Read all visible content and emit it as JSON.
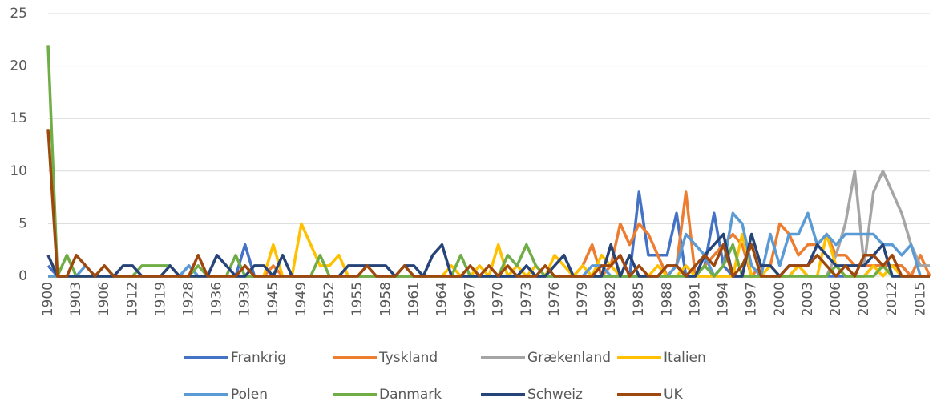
{
  "chart_data": {
    "type": "line",
    "categories": [
      1900,
      null,
      null,
      1903,
      null,
      null,
      1906,
      null,
      null,
      1912,
      null,
      null,
      1919,
      null,
      null,
      1928,
      null,
      null,
      1936,
      null,
      null,
      1939,
      null,
      null,
      1945,
      null,
      null,
      1949,
      null,
      null,
      1952,
      null,
      null,
      1955,
      null,
      null,
      1958,
      null,
      null,
      1961,
      null,
      null,
      1964,
      null,
      null,
      1967,
      null,
      null,
      1970,
      null,
      null,
      1973,
      null,
      null,
      1976,
      null,
      null,
      1979,
      null,
      null,
      1982,
      null,
      null,
      1985,
      null,
      null,
      1988,
      null,
      null,
      1991,
      null,
      null,
      1994,
      null,
      null,
      1997,
      null,
      null,
      2000,
      null,
      null,
      2003,
      null,
      null,
      2006,
      null,
      null,
      2009,
      null,
      null,
      2012,
      null,
      null,
      2015,
      null
    ],
    "series": [
      {
        "name": "Frankrig",
        "color": "#4472c4",
        "values": [
          1,
          0,
          0,
          0,
          0,
          0,
          0,
          0,
          0,
          0,
          0,
          0,
          0,
          0,
          0,
          1,
          0,
          0,
          0,
          0,
          0,
          3,
          0,
          0,
          0,
          0,
          0,
          0,
          0,
          0,
          0,
          0,
          0,
          0,
          0,
          0,
          0,
          0,
          0,
          0,
          0,
          0,
          0,
          0,
          0,
          0,
          0,
          0,
          0,
          0,
          0,
          0,
          0,
          0,
          0,
          0,
          0,
          0,
          0,
          0,
          0,
          0,
          0,
          8,
          2,
          2,
          2,
          6,
          0,
          0,
          1,
          6,
          1,
          0,
          0,
          0,
          0,
          0,
          0,
          0,
          1,
          0,
          0,
          0,
          0,
          0,
          0,
          0,
          1,
          1,
          1,
          1,
          0,
          0,
          0
        ]
      },
      {
        "name": "Tyskland",
        "color": "#ed7d31",
        "values": [
          0,
          0,
          0,
          0,
          0,
          0,
          0,
          0,
          0,
          0,
          0,
          0,
          0,
          0,
          0,
          0,
          0,
          0,
          0,
          0,
          0,
          0,
          0,
          0,
          1,
          0,
          0,
          0,
          0,
          0,
          0,
          0,
          0,
          0,
          0,
          0,
          0,
          0,
          0,
          0,
          0,
          0,
          0,
          0,
          0,
          0,
          0,
          0,
          0,
          0,
          0,
          0,
          0,
          0,
          0,
          0,
          0,
          1,
          3,
          0,
          1,
          5,
          3,
          5,
          4,
          2,
          0,
          1,
          8,
          0,
          1,
          2,
          3,
          4,
          3,
          0,
          1,
          1,
          5,
          4,
          2,
          3,
          3,
          4,
          2,
          2,
          1,
          1,
          1,
          1,
          1,
          1,
          0,
          2,
          0
        ]
      },
      {
        "name": "Grækenland",
        "color": "#a5a5a5",
        "values": [
          0,
          0,
          0,
          0,
          0,
          0,
          0,
          0,
          0,
          0,
          0,
          0,
          0,
          0,
          0,
          0,
          0,
          0,
          0,
          0,
          0,
          0,
          0,
          0,
          0,
          0,
          0,
          0,
          0,
          0,
          0,
          0,
          0,
          0,
          0,
          0,
          0,
          0,
          0,
          0,
          0,
          0,
          0,
          0,
          0,
          0,
          0,
          0,
          0,
          0,
          0,
          0,
          0,
          0,
          0,
          0,
          0,
          0,
          0,
          0,
          0,
          0,
          0,
          0,
          0,
          0,
          0,
          0,
          0,
          0,
          0,
          0,
          0,
          0,
          0,
          0,
          0,
          0,
          0,
          0,
          0,
          0,
          0,
          0,
          2,
          5,
          10,
          1,
          8,
          10,
          8,
          6,
          3,
          1,
          1
        ]
      },
      {
        "name": "Italien",
        "color": "#ffc000",
        "values": [
          0,
          0,
          0,
          0,
          0,
          0,
          0,
          0,
          0,
          0,
          0,
          0,
          0,
          0,
          0,
          0,
          0,
          0,
          0,
          0,
          0,
          0,
          0,
          0,
          3,
          0,
          0,
          5,
          3,
          1,
          1,
          2,
          0,
          0,
          0,
          0,
          0,
          0,
          0,
          0,
          0,
          0,
          0,
          1,
          0,
          0,
          1,
          0,
          3,
          0,
          1,
          0,
          1,
          0,
          2,
          1,
          0,
          1,
          0,
          2,
          1,
          0,
          0,
          0,
          0,
          1,
          0,
          0,
          1,
          0,
          0,
          0,
          0,
          0,
          4,
          0,
          0,
          1,
          0,
          0,
          1,
          0,
          0,
          4,
          1,
          0,
          0,
          0,
          1,
          0,
          1,
          0,
          0,
          0,
          0
        ]
      },
      {
        "name": "Polen",
        "color": "#5b9bd5",
        "values": [
          0,
          0,
          0,
          0,
          1,
          0,
          0,
          0,
          0,
          0,
          0,
          0,
          0,
          0,
          0,
          1,
          0,
          0,
          0,
          0,
          0,
          0,
          0,
          0,
          0,
          0,
          0,
          0,
          0,
          0,
          0,
          0,
          0,
          0,
          0,
          0,
          0,
          0,
          0,
          0,
          0,
          0,
          0,
          0,
          0,
          0,
          0,
          0,
          0,
          0,
          0,
          0,
          0,
          0,
          0,
          0,
          0,
          0,
          1,
          1,
          0,
          0,
          0,
          0,
          0,
          0,
          0,
          1,
          4,
          3,
          2,
          0,
          1,
          6,
          5,
          1,
          0,
          4,
          1,
          4,
          4,
          6,
          3,
          4,
          3,
          4,
          4,
          4,
          4,
          3,
          3,
          2,
          3,
          0,
          0
        ]
      },
      {
        "name": "Danmark",
        "color": "#70ad47",
        "values": [
          22,
          0,
          2,
          0,
          0,
          0,
          1,
          0,
          0,
          0,
          1,
          1,
          1,
          1,
          0,
          0,
          1,
          0,
          0,
          0,
          2,
          0,
          0,
          0,
          0,
          0,
          0,
          0,
          0,
          2,
          0,
          0,
          0,
          0,
          0,
          0,
          0,
          0,
          0,
          0,
          0,
          0,
          0,
          0,
          2,
          0,
          0,
          0,
          0,
          2,
          1,
          3,
          1,
          0,
          0,
          0,
          0,
          0,
          0,
          0,
          0,
          0,
          0,
          0,
          0,
          0,
          0,
          0,
          0,
          0,
          1,
          0,
          1,
          3,
          0,
          0,
          0,
          0,
          0,
          0,
          0,
          0,
          0,
          0,
          1,
          0,
          0,
          0,
          0,
          1,
          0,
          0,
          0,
          0,
          0
        ]
      },
      {
        "name": "Schweiz",
        "color": "#264478",
        "values": [
          2,
          0,
          0,
          0,
          0,
          0,
          0,
          0,
          1,
          1,
          0,
          0,
          0,
          1,
          0,
          0,
          0,
          0,
          2,
          1,
          0,
          0,
          1,
          1,
          0,
          2,
          0,
          0,
          0,
          0,
          0,
          0,
          1,
          1,
          1,
          1,
          1,
          0,
          1,
          1,
          0,
          2,
          3,
          0,
          0,
          0,
          0,
          0,
          0,
          0,
          0,
          1,
          0,
          0,
          1,
          2,
          0,
          0,
          0,
          0,
          3,
          0,
          2,
          0,
          0,
          0,
          1,
          1,
          0,
          0,
          2,
          3,
          4,
          0,
          0,
          4,
          1,
          1,
          0,
          1,
          1,
          1,
          3,
          2,
          1,
          1,
          1,
          1,
          2,
          3,
          0,
          0,
          0,
          0,
          0
        ]
      },
      {
        "name": "UK",
        "color": "#9e480e",
        "values": [
          14,
          0,
          0,
          2,
          1,
          0,
          1,
          0,
          0,
          0,
          0,
          0,
          0,
          0,
          0,
          0,
          2,
          0,
          0,
          0,
          0,
          1,
          0,
          0,
          0,
          0,
          0,
          0,
          0,
          0,
          0,
          0,
          0,
          0,
          1,
          0,
          0,
          0,
          1,
          0,
          0,
          0,
          0,
          0,
          0,
          1,
          0,
          1,
          0,
          1,
          0,
          0,
          0,
          1,
          0,
          0,
          0,
          0,
          0,
          1,
          1,
          2,
          0,
          1,
          0,
          0,
          1,
          1,
          0,
          1,
          2,
          1,
          3,
          0,
          1,
          3,
          0,
          0,
          0,
          1,
          1,
          1,
          2,
          1,
          0,
          1,
          0,
          2,
          2,
          1,
          2,
          0,
          0,
          0,
          0
        ]
      }
    ],
    "ylim": [
      0,
      25
    ],
    "yticks": [
      0,
      5,
      10,
      15,
      20,
      25
    ],
    "grid": true
  }
}
